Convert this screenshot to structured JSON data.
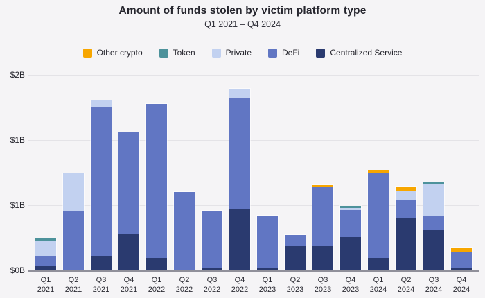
{
  "header": {
    "title": "Amount of funds stolen by victim platform type",
    "subtitle": "Q1 2021 – Q4 2024"
  },
  "legend": [
    {
      "label": "Other crypto",
      "color": "#f7a600"
    },
    {
      "label": "Token",
      "color": "#4d929b"
    },
    {
      "label": "Private",
      "color": "#c2d1f0"
    },
    {
      "label": "DeFi",
      "color": "#6176c3"
    },
    {
      "label": "Centralized Service",
      "color": "#2a3a6f"
    }
  ],
  "chart_data": {
    "type": "bar",
    "stacked": true,
    "title": "Amount of funds stolen by victim platform type",
    "subtitle": "Q1 2021 – Q4 2024",
    "unit": "billions USD",
    "grid": true,
    "legend_position": "top",
    "ylim": [
      0,
      2
    ],
    "y_axis": {
      "ticks": [
        {
          "label": "$0B",
          "value": 0
        },
        {
          "label": "$1B",
          "value": 0.667
        },
        {
          "label": "$1B",
          "value": 1.333
        },
        {
          "label": "$2B",
          "value": 2
        }
      ]
    },
    "categories": [
      "Q1 2021",
      "Q2 2021",
      "Q3 2021",
      "Q4 2021",
      "Q1 2022",
      "Q2 2022",
      "Q3 2022",
      "Q4 2022",
      "Q1 2023",
      "Q2 2023",
      "Q3 2023",
      "Q4 2023",
      "Q1 2024",
      "Q2 2024",
      "Q3 2024",
      "Q4 2024"
    ],
    "stack_order_bottom_to_top": [
      "Centralized Service",
      "DeFi",
      "Private",
      "Token",
      "Other crypto"
    ],
    "series": [
      {
        "name": "Centralized Service",
        "color": "#2a3a6f",
        "values": [
          0.04,
          0,
          0.14,
          0.37,
          0.12,
          0,
          0.02,
          0.63,
          0.02,
          0.25,
          0.25,
          0.34,
          0.13,
          0.53,
          0.41,
          0.02
        ]
      },
      {
        "name": "DeFi",
        "color": "#6176c3",
        "values": [
          0.11,
          0.61,
          1.53,
          1.04,
          1.58,
          0.8,
          0.59,
          1.14,
          0.54,
          0.11,
          0.6,
          0.28,
          0.87,
          0.19,
          0.15,
          0.17
        ]
      },
      {
        "name": "Private",
        "color": "#c2d1f0",
        "values": [
          0.15,
          0.38,
          0.07,
          0,
          0,
          0,
          0,
          0.09,
          0,
          0,
          0,
          0.02,
          0,
          0.09,
          0.32,
          0
        ]
      },
      {
        "name": "Token",
        "color": "#4d929b",
        "values": [
          0.03,
          0,
          0,
          0,
          0,
          0,
          0,
          0,
          0,
          0,
          0,
          0.02,
          0,
          0,
          0.02,
          0
        ]
      },
      {
        "name": "Other crypto",
        "color": "#f7a600",
        "values": [
          0,
          0,
          0,
          0,
          0,
          0,
          0,
          0,
          0,
          0,
          0.02,
          0,
          0.02,
          0.04,
          0,
          0.035
        ]
      }
    ],
    "totals": [
      0.33,
      0.99,
      1.74,
      1.41,
      1.7,
      0.8,
      0.61,
      1.86,
      0.56,
      0.36,
      0.87,
      0.66,
      1.02,
      0.85,
      0.9,
      0.23
    ]
  }
}
